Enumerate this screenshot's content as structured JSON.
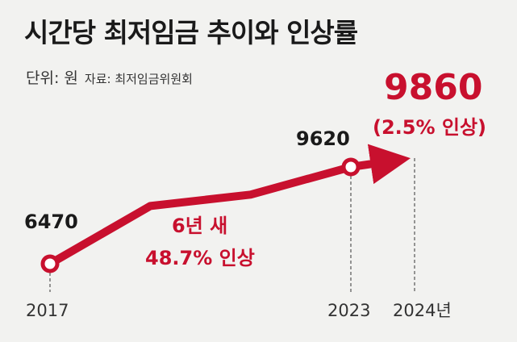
{
  "header": {
    "title": "시간당 최저임금 추이와 인상률",
    "unit": "단위: 원",
    "source": "자료: 최저임금위원회"
  },
  "chart_data": {
    "type": "line",
    "title": "시간당 최저임금 추이와 인상률",
    "x_ticks": [
      "2017",
      "2023",
      "2024년"
    ],
    "series": [
      {
        "values": [
          {
            "x": "2017",
            "y": 6470,
            "label": "6470"
          },
          {
            "x": "2019",
            "y": 8350,
            "label": ""
          },
          {
            "x": "2021",
            "y": 8720,
            "label": ""
          },
          {
            "x": "2023",
            "y": 9620,
            "label": "9620"
          },
          {
            "x": "2024",
            "y": 9860,
            "label": "9860"
          }
        ]
      }
    ],
    "annotations": {
      "period_text_line1": "6년 새",
      "period_text_line2": "48.7% 인상",
      "final_note": "(2.5% 인상)"
    },
    "colors": {
      "line": "#c8102e",
      "text_dark": "#1a1a1a"
    }
  }
}
